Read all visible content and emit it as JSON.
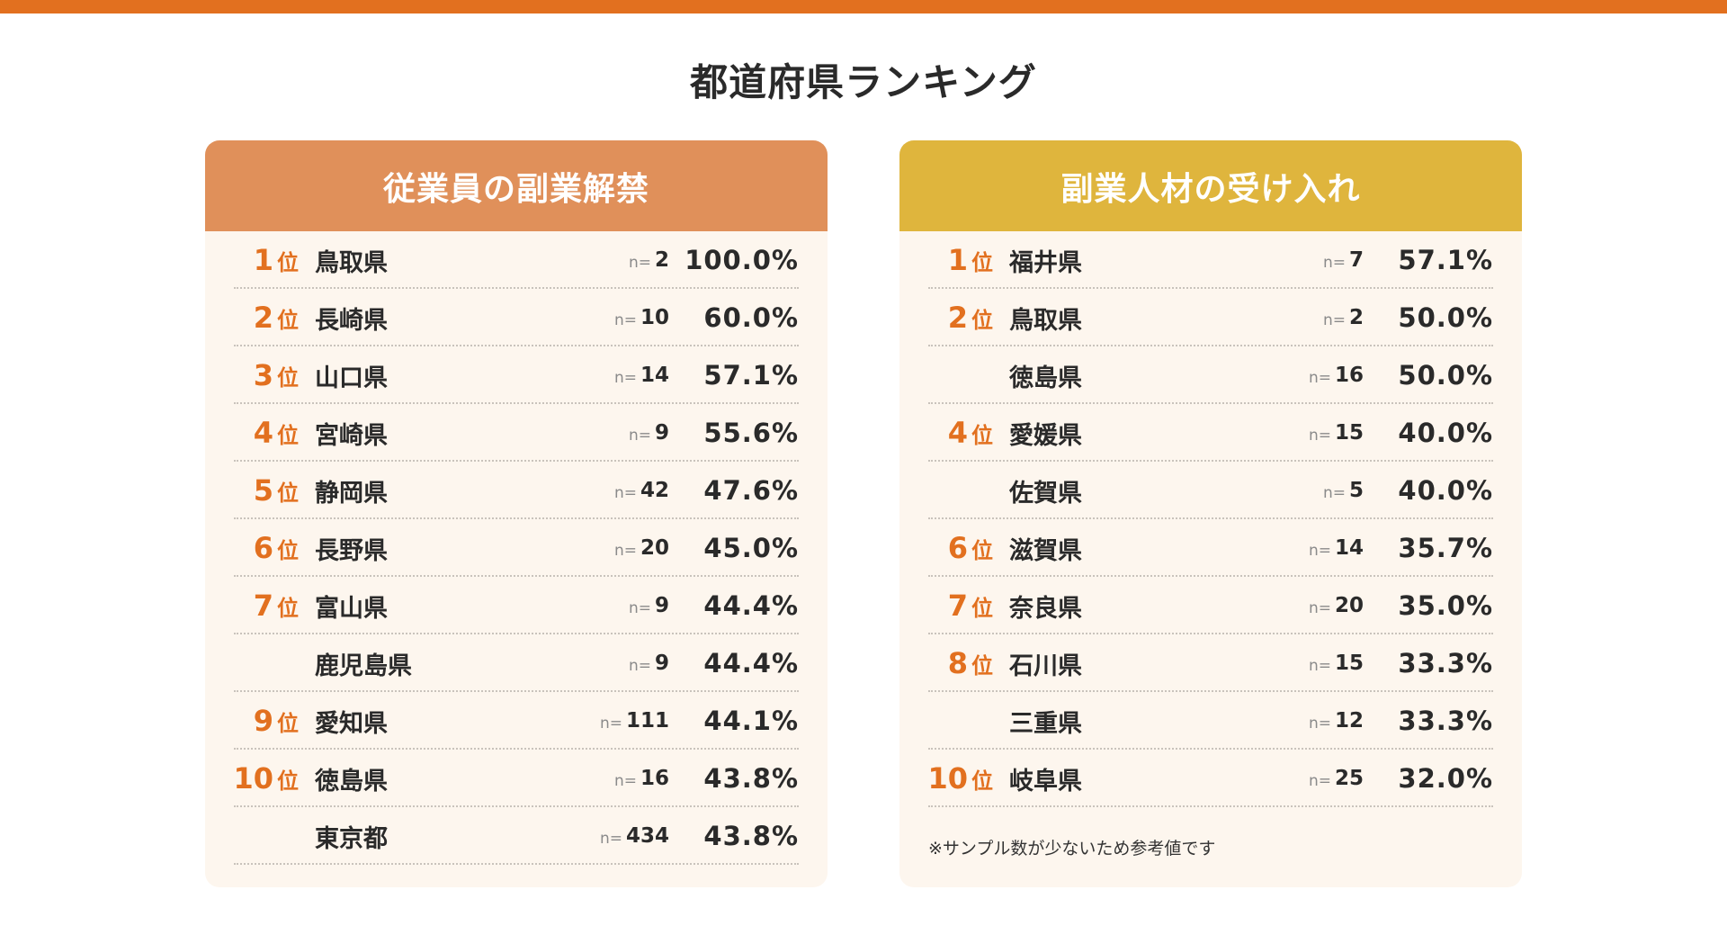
{
  "title": "都道府県ランキング",
  "colors": {
    "top_bar": "#E2701F",
    "rank": "#E2701F",
    "left_header": "#E0905A",
    "right_header": "#DFB53D",
    "card_bg": "#FDF6EE"
  },
  "rank_suffix": "位",
  "n_label": "n=",
  "left": {
    "header": "従業員の副業解禁",
    "rows": [
      {
        "rank": "1",
        "pref": "鳥取県",
        "n": "2",
        "pct": "100.0%"
      },
      {
        "rank": "2",
        "pref": "長崎県",
        "n": "10",
        "pct": "60.0%"
      },
      {
        "rank": "3",
        "pref": "山口県",
        "n": "14",
        "pct": "57.1%"
      },
      {
        "rank": "4",
        "pref": "宮崎県",
        "n": "9",
        "pct": "55.6%"
      },
      {
        "rank": "5",
        "pref": "静岡県",
        "n": "42",
        "pct": "47.6%"
      },
      {
        "rank": "6",
        "pref": "長野県",
        "n": "20",
        "pct": "45.0%"
      },
      {
        "rank": "7",
        "pref": "富山県",
        "n": "9",
        "pct": "44.4%"
      },
      {
        "rank": "",
        "pref": "鹿児島県",
        "n": "9",
        "pct": "44.4%"
      },
      {
        "rank": "9",
        "pref": "愛知県",
        "n": "111",
        "pct": "44.1%"
      },
      {
        "rank": "10",
        "pref": "徳島県",
        "n": "16",
        "pct": "43.8%"
      },
      {
        "rank": "",
        "pref": "東京都",
        "n": "434",
        "pct": "43.8%"
      }
    ]
  },
  "right": {
    "header": "副業人材の受け入れ",
    "rows": [
      {
        "rank": "1",
        "pref": "福井県",
        "n": "7",
        "pct": "57.1%"
      },
      {
        "rank": "2",
        "pref": "鳥取県",
        "n": "2",
        "pct": "50.0%"
      },
      {
        "rank": "",
        "pref": "徳島県",
        "n": "16",
        "pct": "50.0%"
      },
      {
        "rank": "4",
        "pref": "愛媛県",
        "n": "15",
        "pct": "40.0%"
      },
      {
        "rank": "",
        "pref": "佐賀県",
        "n": "5",
        "pct": "40.0%"
      },
      {
        "rank": "6",
        "pref": "滋賀県",
        "n": "14",
        "pct": "35.7%"
      },
      {
        "rank": "7",
        "pref": "奈良県",
        "n": "20",
        "pct": "35.0%"
      },
      {
        "rank": "8",
        "pref": "石川県",
        "n": "15",
        "pct": "33.3%"
      },
      {
        "rank": "",
        "pref": "三重県",
        "n": "12",
        "pct": "33.3%"
      },
      {
        "rank": "10",
        "pref": "岐阜県",
        "n": "25",
        "pct": "32.0%"
      }
    ],
    "note": "※サンプル数が少ないため参考値です"
  }
}
